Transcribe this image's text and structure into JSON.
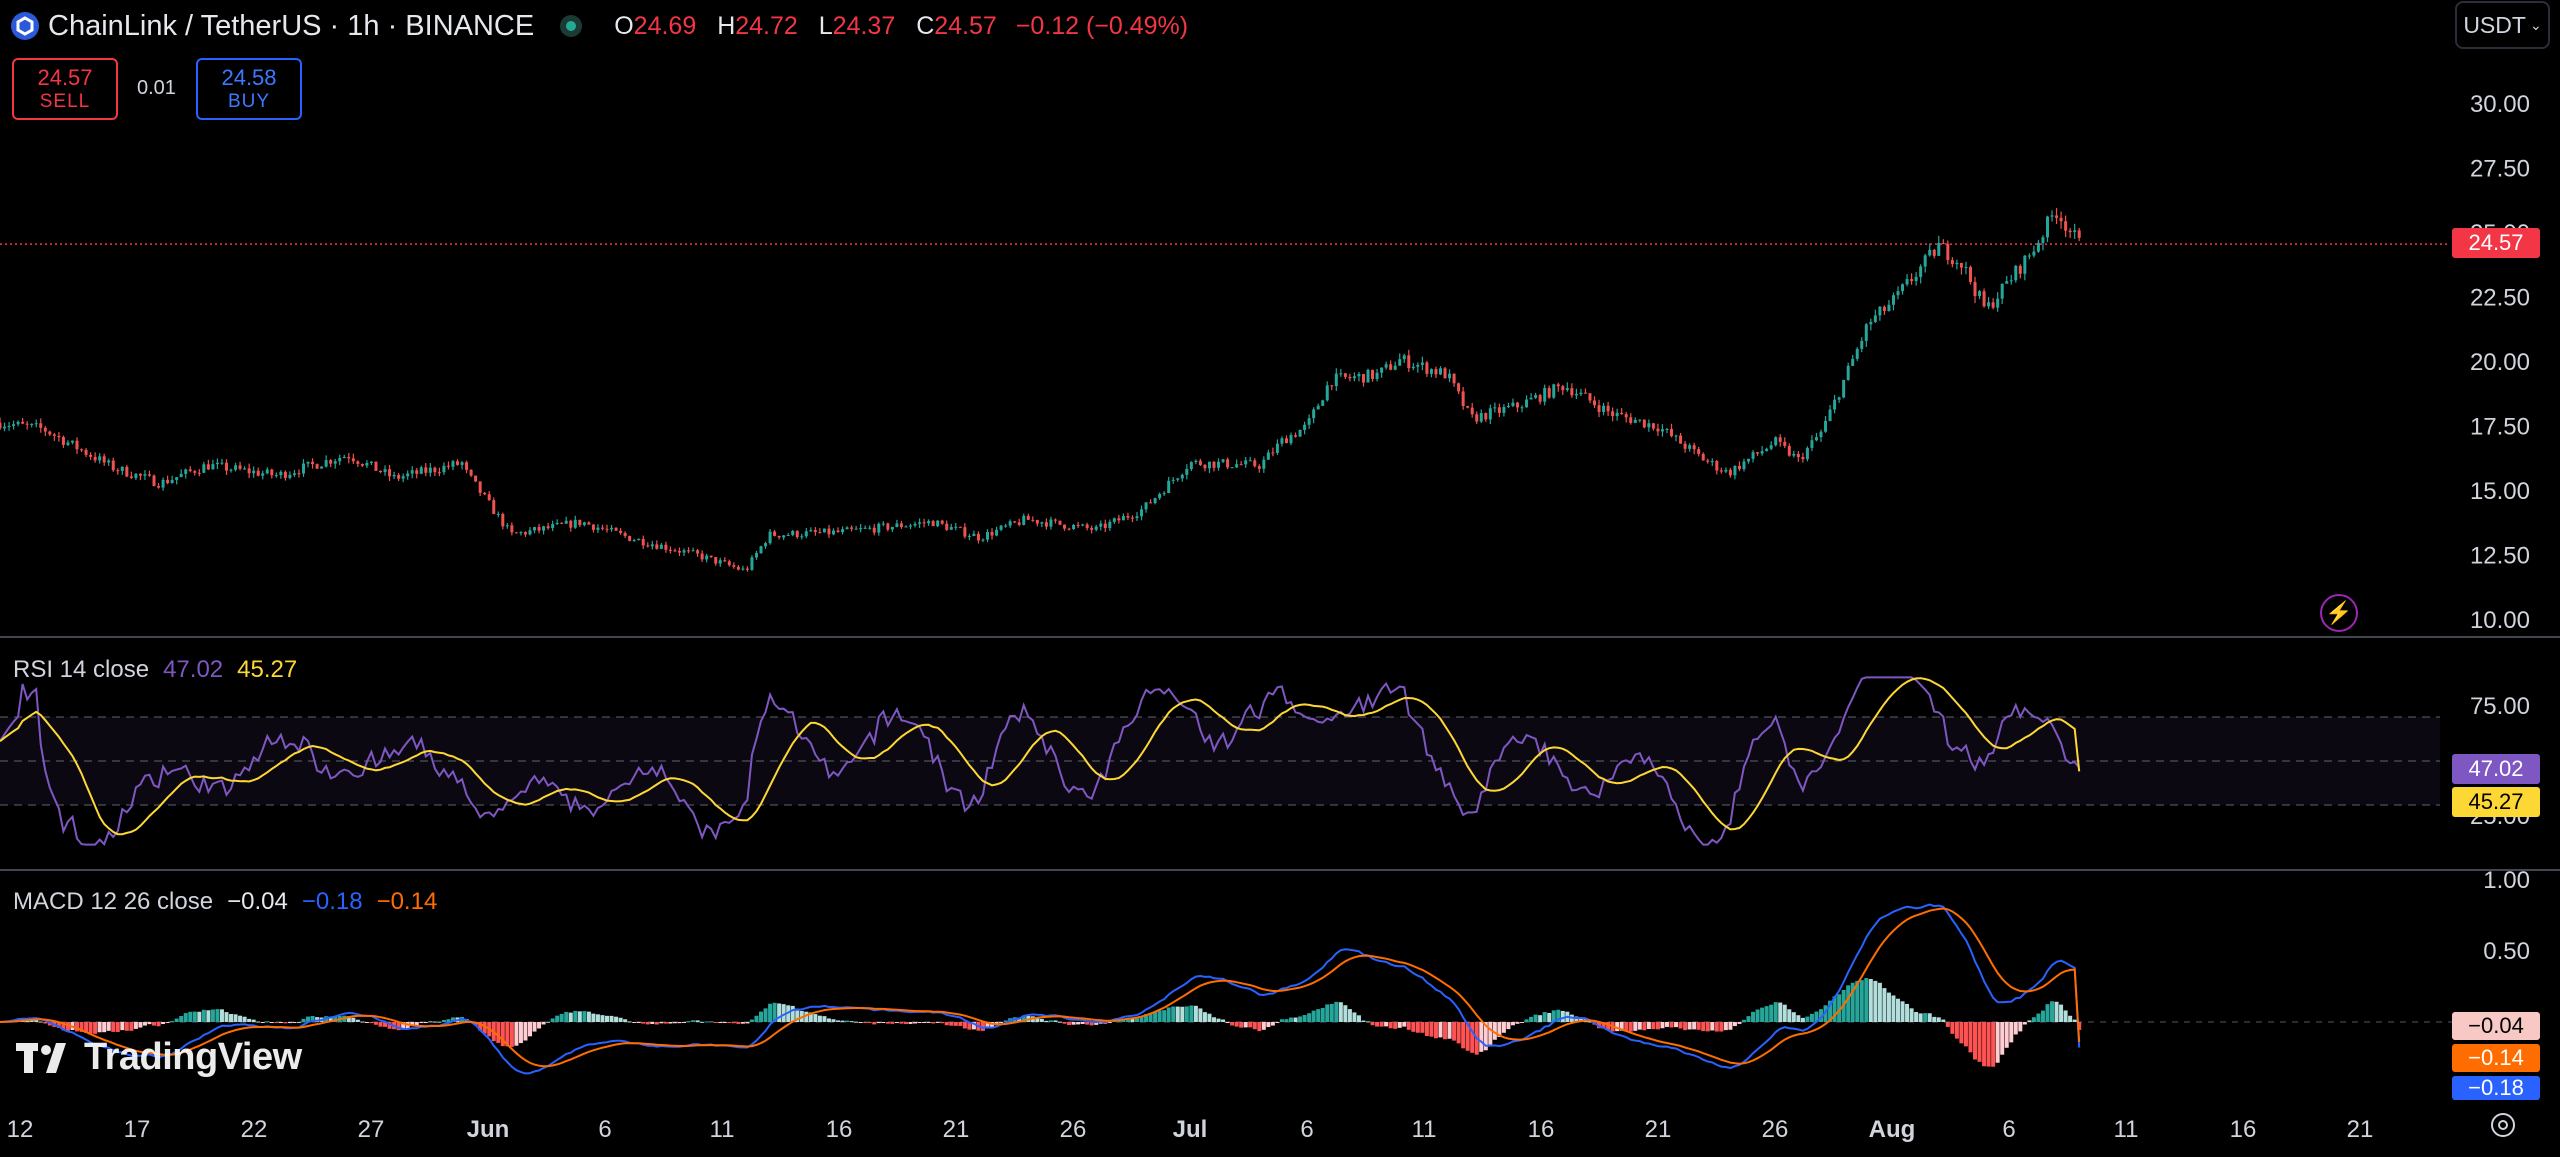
{
  "header": {
    "symbol_title": "ChainLink / TetherUS · 1h · BINANCE",
    "ohlc": {
      "o_label": "O",
      "o": "24.69",
      "h_label": "H",
      "h": "24.72",
      "l_label": "L",
      "l": "24.37",
      "c_label": "C",
      "c": "24.57",
      "change": "−0.12 (−0.49%)"
    },
    "currency_button": "USDT"
  },
  "trade": {
    "sell_price": "24.57",
    "sell_label": "SELL",
    "spread": "0.01",
    "buy_price": "24.58",
    "buy_label": "BUY"
  },
  "price_axis": {
    "ticks": [
      "30.00",
      "27.50",
      "25.00",
      "22.50",
      "20.00",
      "17.50",
      "15.00",
      "12.50",
      "10.00"
    ],
    "last_price_label": "24.57"
  },
  "rsi": {
    "legend_name": "RSI 14 close",
    "value": "47.02",
    "ma_value": "45.27",
    "ticks": [
      "75.00",
      "25.00"
    ],
    "label_rsi": "47.02",
    "label_ma": "45.27"
  },
  "macd": {
    "legend_name": "MACD 12 26 close",
    "hist_value": "−0.04",
    "macd_value": "−0.18",
    "signal_value": "−0.14",
    "ticks": [
      "1.00",
      "0.50"
    ],
    "label_hist": "−0.04",
    "label_signal": "−0.14",
    "label_macd": "−0.18"
  },
  "time_axis": {
    "labels": [
      "12",
      "17",
      "22",
      "27",
      "Jun",
      "6",
      "11",
      "16",
      "21",
      "26",
      "Jul",
      "6",
      "11",
      "16",
      "21",
      "26",
      "Aug",
      "6",
      "11",
      "16",
      "21"
    ]
  },
  "watermark": "TradingView",
  "colors": {
    "up": "#26a69a",
    "down": "#ef5350",
    "rsi": "#7e57c2",
    "rsi_ma": "#fdd835",
    "macd": "#2962ff",
    "signal": "#ff6d00",
    "last_price": "#f23645"
  },
  "icons": [
    "chainlink-logo-icon",
    "market-status-icon",
    "chevron-down-icon",
    "lightning-icon",
    "settings-icon",
    "tradingview-logo-icon"
  ],
  "chart_data": {
    "type": "candlestick",
    "title": "ChainLink / TetherUS · 1h · BINANCE",
    "ylim": [
      10,
      30
    ],
    "price_path": [
      {
        "x": "May 10",
        "y": 17.8
      },
      {
        "x": "May 13",
        "y": 17.4
      },
      {
        "x": "May 16",
        "y": 15.9
      },
      {
        "x": "May 18",
        "y": 15.3
      },
      {
        "x": "May 20",
        "y": 16.0
      },
      {
        "x": "May 23",
        "y": 15.6
      },
      {
        "x": "May 26",
        "y": 16.4
      },
      {
        "x": "May 28",
        "y": 15.5
      },
      {
        "x": "May 31",
        "y": 16.1
      },
      {
        "x": "Jun 2",
        "y": 14.0
      },
      {
        "x": "Jun 6",
        "y": 13.6
      },
      {
        "x": "Jun 8",
        "y": 14.2
      },
      {
        "x": "Jun 10",
        "y": 15.0
      },
      {
        "x": "Jun 11",
        "y": 15.8
      },
      {
        "x": "Jun 13",
        "y": 13.3
      },
      {
        "x": "Jun 16",
        "y": 13.8
      },
      {
        "x": "Jun 18",
        "y": 13.2
      },
      {
        "x": "Jun 21",
        "y": 12.5
      },
      {
        "x": "Jun 23",
        "y": 11.9
      },
      {
        "x": "Jun 24",
        "y": 13.3
      },
      {
        "x": "Jun 27",
        "y": 13.4
      },
      {
        "x": "Jul 1",
        "y": 13.8
      },
      {
        "x": "Jul 3",
        "y": 13.2
      },
      {
        "x": "Jul 5",
        "y": 13.9
      },
      {
        "x": "Jul 8",
        "y": 13.5
      },
      {
        "x": "Jul 10",
        "y": 14.3
      },
      {
        "x": "Jul 12",
        "y": 16.1
      },
      {
        "x": "Jul 15",
        "y": 16.0
      },
      {
        "x": "Jul 16",
        "y": 17.0
      },
      {
        "x": "Jul 17",
        "y": 17.5
      },
      {
        "x": "Jul 18",
        "y": 19.3
      },
      {
        "x": "Jul 20",
        "y": 19.5
      },
      {
        "x": "Jul 21",
        "y": 20.1
      },
      {
        "x": "Jul 23",
        "y": 19.5
      },
      {
        "x": "Jul 24",
        "y": 17.8
      },
      {
        "x": "Jul 26",
        "y": 18.3
      },
      {
        "x": "Jul 28",
        "y": 19.1
      },
      {
        "x": "Jul 30",
        "y": 18.0
      },
      {
        "x": "Aug 1",
        "y": 17.5
      },
      {
        "x": "Aug 3",
        "y": 16.2
      },
      {
        "x": "Aug 4",
        "y": 15.7
      },
      {
        "x": "Aug 6",
        "y": 16.9
      },
      {
        "x": "Aug 7",
        "y": 16.2
      },
      {
        "x": "Aug 8",
        "y": 17.3
      },
      {
        "x": "Aug 10",
        "y": 21.5
      },
      {
        "x": "Aug 11",
        "y": 22.3
      },
      {
        "x": "Aug 13",
        "y": 24.5
      },
      {
        "x": "Aug 14",
        "y": 23.8
      },
      {
        "x": "Aug 15",
        "y": 22.0
      },
      {
        "x": "Aug 17",
        "y": 24.3
      },
      {
        "x": "Aug 18",
        "y": 25.9
      },
      {
        "x": "Aug 19",
        "y": 24.57
      }
    ],
    "last_price": 24.57,
    "rsi_panel": {
      "ylim": [
        0,
        100
      ],
      "upper_band": 70,
      "middle": 50,
      "lower_band": 30,
      "rsi": 47.02,
      "rsi_ma": 45.27
    },
    "macd_panel": {
      "hist": -0.04,
      "macd": -0.18,
      "signal": -0.14,
      "peak": 0.95
    }
  }
}
